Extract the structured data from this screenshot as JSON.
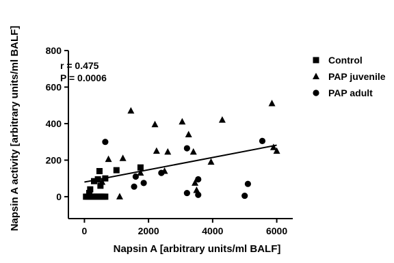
{
  "chart_data": {
    "type": "scatter",
    "title": "",
    "xlabel": "Napsin A [arbitrary units/ml BALF]",
    "ylabel": "Napsin A activity [arbitrary units/ml BALF]",
    "xlim": [
      -500,
      6500
    ],
    "ylim": [
      -120,
      800
    ],
    "xticks": [
      0,
      2000,
      4000,
      6000
    ],
    "yticks": [
      0,
      200,
      400,
      600,
      800
    ],
    "grid": false,
    "legend_position": "top-right",
    "annotations": [
      "r = 0.475",
      "P = 0.0006"
    ],
    "series": [
      {
        "name": "Control",
        "marker": "square",
        "points": [
          [
            50,
            0
          ],
          [
            100,
            0
          ],
          [
            150,
            0
          ],
          [
            200,
            0
          ],
          [
            250,
            0
          ],
          [
            300,
            0
          ],
          [
            350,
            0
          ],
          [
            400,
            0
          ],
          [
            450,
            0
          ],
          [
            500,
            0
          ],
          [
            550,
            0
          ],
          [
            600,
            0
          ],
          [
            650,
            0
          ],
          [
            150,
            20
          ],
          [
            180,
            40
          ],
          [
            300,
            85
          ],
          [
            420,
            95
          ],
          [
            470,
            140
          ],
          [
            500,
            60
          ],
          [
            650,
            100
          ],
          [
            1000,
            145
          ],
          [
            1750,
            160
          ]
        ]
      },
      {
        "name": "PAP juvenile",
        "marker": "triangle",
        "points": [
          [
            550,
            80
          ],
          [
            750,
            205
          ],
          [
            1100,
            0
          ],
          [
            1200,
            210
          ],
          [
            1450,
            470
          ],
          [
            1750,
            130
          ],
          [
            2200,
            395
          ],
          [
            2250,
            250
          ],
          [
            2500,
            140
          ],
          [
            2600,
            245
          ],
          [
            3050,
            410
          ],
          [
            3250,
            340
          ],
          [
            3400,
            245
          ],
          [
            3450,
            75
          ],
          [
            3500,
            35
          ],
          [
            3950,
            190
          ],
          [
            4300,
            420
          ],
          [
            5850,
            510
          ],
          [
            5900,
            270
          ],
          [
            6000,
            250
          ]
        ]
      },
      {
        "name": "PAP adult",
        "marker": "circle",
        "points": [
          [
            650,
            300
          ],
          [
            1550,
            55
          ],
          [
            1600,
            110
          ],
          [
            1850,
            75
          ],
          [
            2400,
            130
          ],
          [
            3200,
            265
          ],
          [
            3200,
            20
          ],
          [
            3550,
            95
          ],
          [
            3550,
            10
          ],
          [
            5000,
            5
          ],
          [
            5100,
            70
          ],
          [
            5550,
            305
          ]
        ]
      }
    ],
    "regression_line": {
      "x": [
        0,
        6000
      ],
      "y": [
        80,
        282
      ]
    }
  }
}
